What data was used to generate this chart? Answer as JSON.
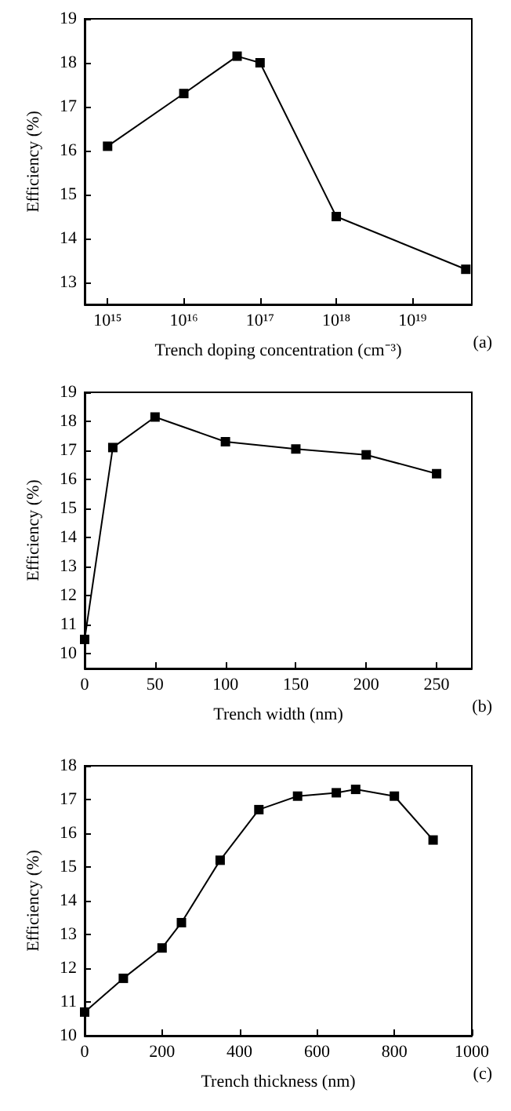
{
  "chart_data": [
    {
      "type": "line",
      "log": "x",
      "xlabel": "Trench doping concentration (cm⁻³)",
      "ylabel": "Efficiency (%)",
      "annotations": [
        "(a)"
      ],
      "x": [
        1000000000000000.0,
        1e+16,
        5e+16,
        1e+17,
        1e+18,
        5e+19
      ],
      "series": [
        {
          "color": "#000000",
          "values": [
            16.1,
            17.3,
            18.15,
            18.0,
            14.5,
            13.3
          ]
        }
      ],
      "xlim": [
        500000000000000.0,
        6e+19
      ],
      "xticks": [
        {
          "value": 1000000000000000.0,
          "label": "10¹⁵"
        },
        {
          "value": 1e+16,
          "label": "10¹⁶"
        },
        {
          "value": 1e+17,
          "label": "10¹⁷"
        },
        {
          "value": 1e+18,
          "label": "10¹⁸"
        },
        {
          "value": 1e+19,
          "label": "10¹⁹"
        }
      ],
      "ylim": [
        12.5,
        19
      ],
      "yticks": [
        13,
        14,
        15,
        16,
        17,
        18,
        19
      ],
      "marker": "square",
      "line_style": "solid"
    },
    {
      "type": "line",
      "xlabel": "Trench width (nm)",
      "ylabel": "Efficiency (%)",
      "annotations": [
        "(b)"
      ],
      "x": [
        0,
        20,
        50,
        100,
        150,
        200,
        250
      ],
      "series": [
        {
          "color": "#000000",
          "values": [
            10.5,
            17.1,
            18.15,
            17.3,
            17.05,
            16.85,
            16.2
          ]
        }
      ],
      "xlim": [
        0,
        275
      ],
      "xticks": [
        0,
        50,
        100,
        150,
        200,
        250
      ],
      "ylim": [
        9.5,
        19
      ],
      "yticks": [
        10,
        11,
        12,
        13,
        14,
        15,
        16,
        17,
        18,
        19
      ],
      "marker": "square",
      "line_style": "solid"
    },
    {
      "type": "line",
      "xlabel": "Trench thickness (nm)",
      "ylabel": "Efficiency (%)",
      "annotations": [
        "(c)"
      ],
      "x": [
        0,
        100,
        200,
        250,
        350,
        450,
        550,
        650,
        700,
        800,
        900
      ],
      "series": [
        {
          "color": "#000000",
          "values": [
            10.7,
            11.7,
            12.6,
            13.35,
            15.2,
            16.7,
            17.1,
            17.2,
            17.3,
            17.1,
            15.8
          ]
        }
      ],
      "xlim": [
        0,
        1000
      ],
      "xticks": [
        0,
        200,
        400,
        600,
        800,
        1000
      ],
      "ylim": [
        10,
        18
      ],
      "yticks": [
        10,
        11,
        12,
        13,
        14,
        15,
        16,
        17,
        18
      ],
      "marker": "square",
      "line_style": "solid"
    }
  ]
}
